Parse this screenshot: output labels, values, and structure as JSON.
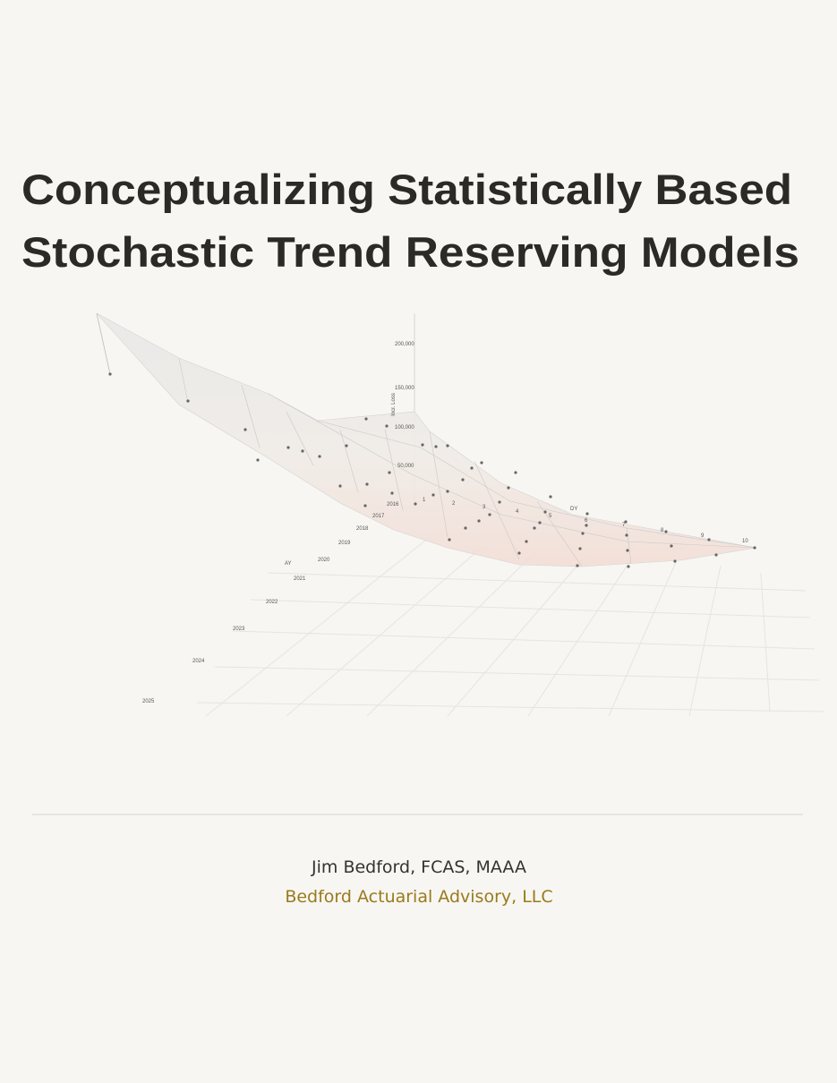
{
  "header": {
    "title_lines": [
      "Conceptualizing Statistically Based",
      "Stochastic Trend Reserving Models"
    ]
  },
  "figure": {
    "z_title": "Incr. Loss",
    "z_ticks": [
      "200,000",
      "150,000",
      "100,000",
      "50,000"
    ],
    "ay_title": "AY",
    "ay_labels": [
      "2016",
      "2017",
      "2018",
      "2019",
      "2020",
      "2021",
      "2022",
      "2023",
      "2024",
      "2025"
    ],
    "dy_title": "DY",
    "dy_labels": [
      "1",
      "2",
      "3",
      "4",
      "5",
      "6",
      "7",
      "8",
      "9",
      "10"
    ]
  },
  "author": {
    "name": "Jim Bedford, FCAS, MAAA",
    "affiliation": "Bedford Actuarial Advisory, LLC"
  }
}
